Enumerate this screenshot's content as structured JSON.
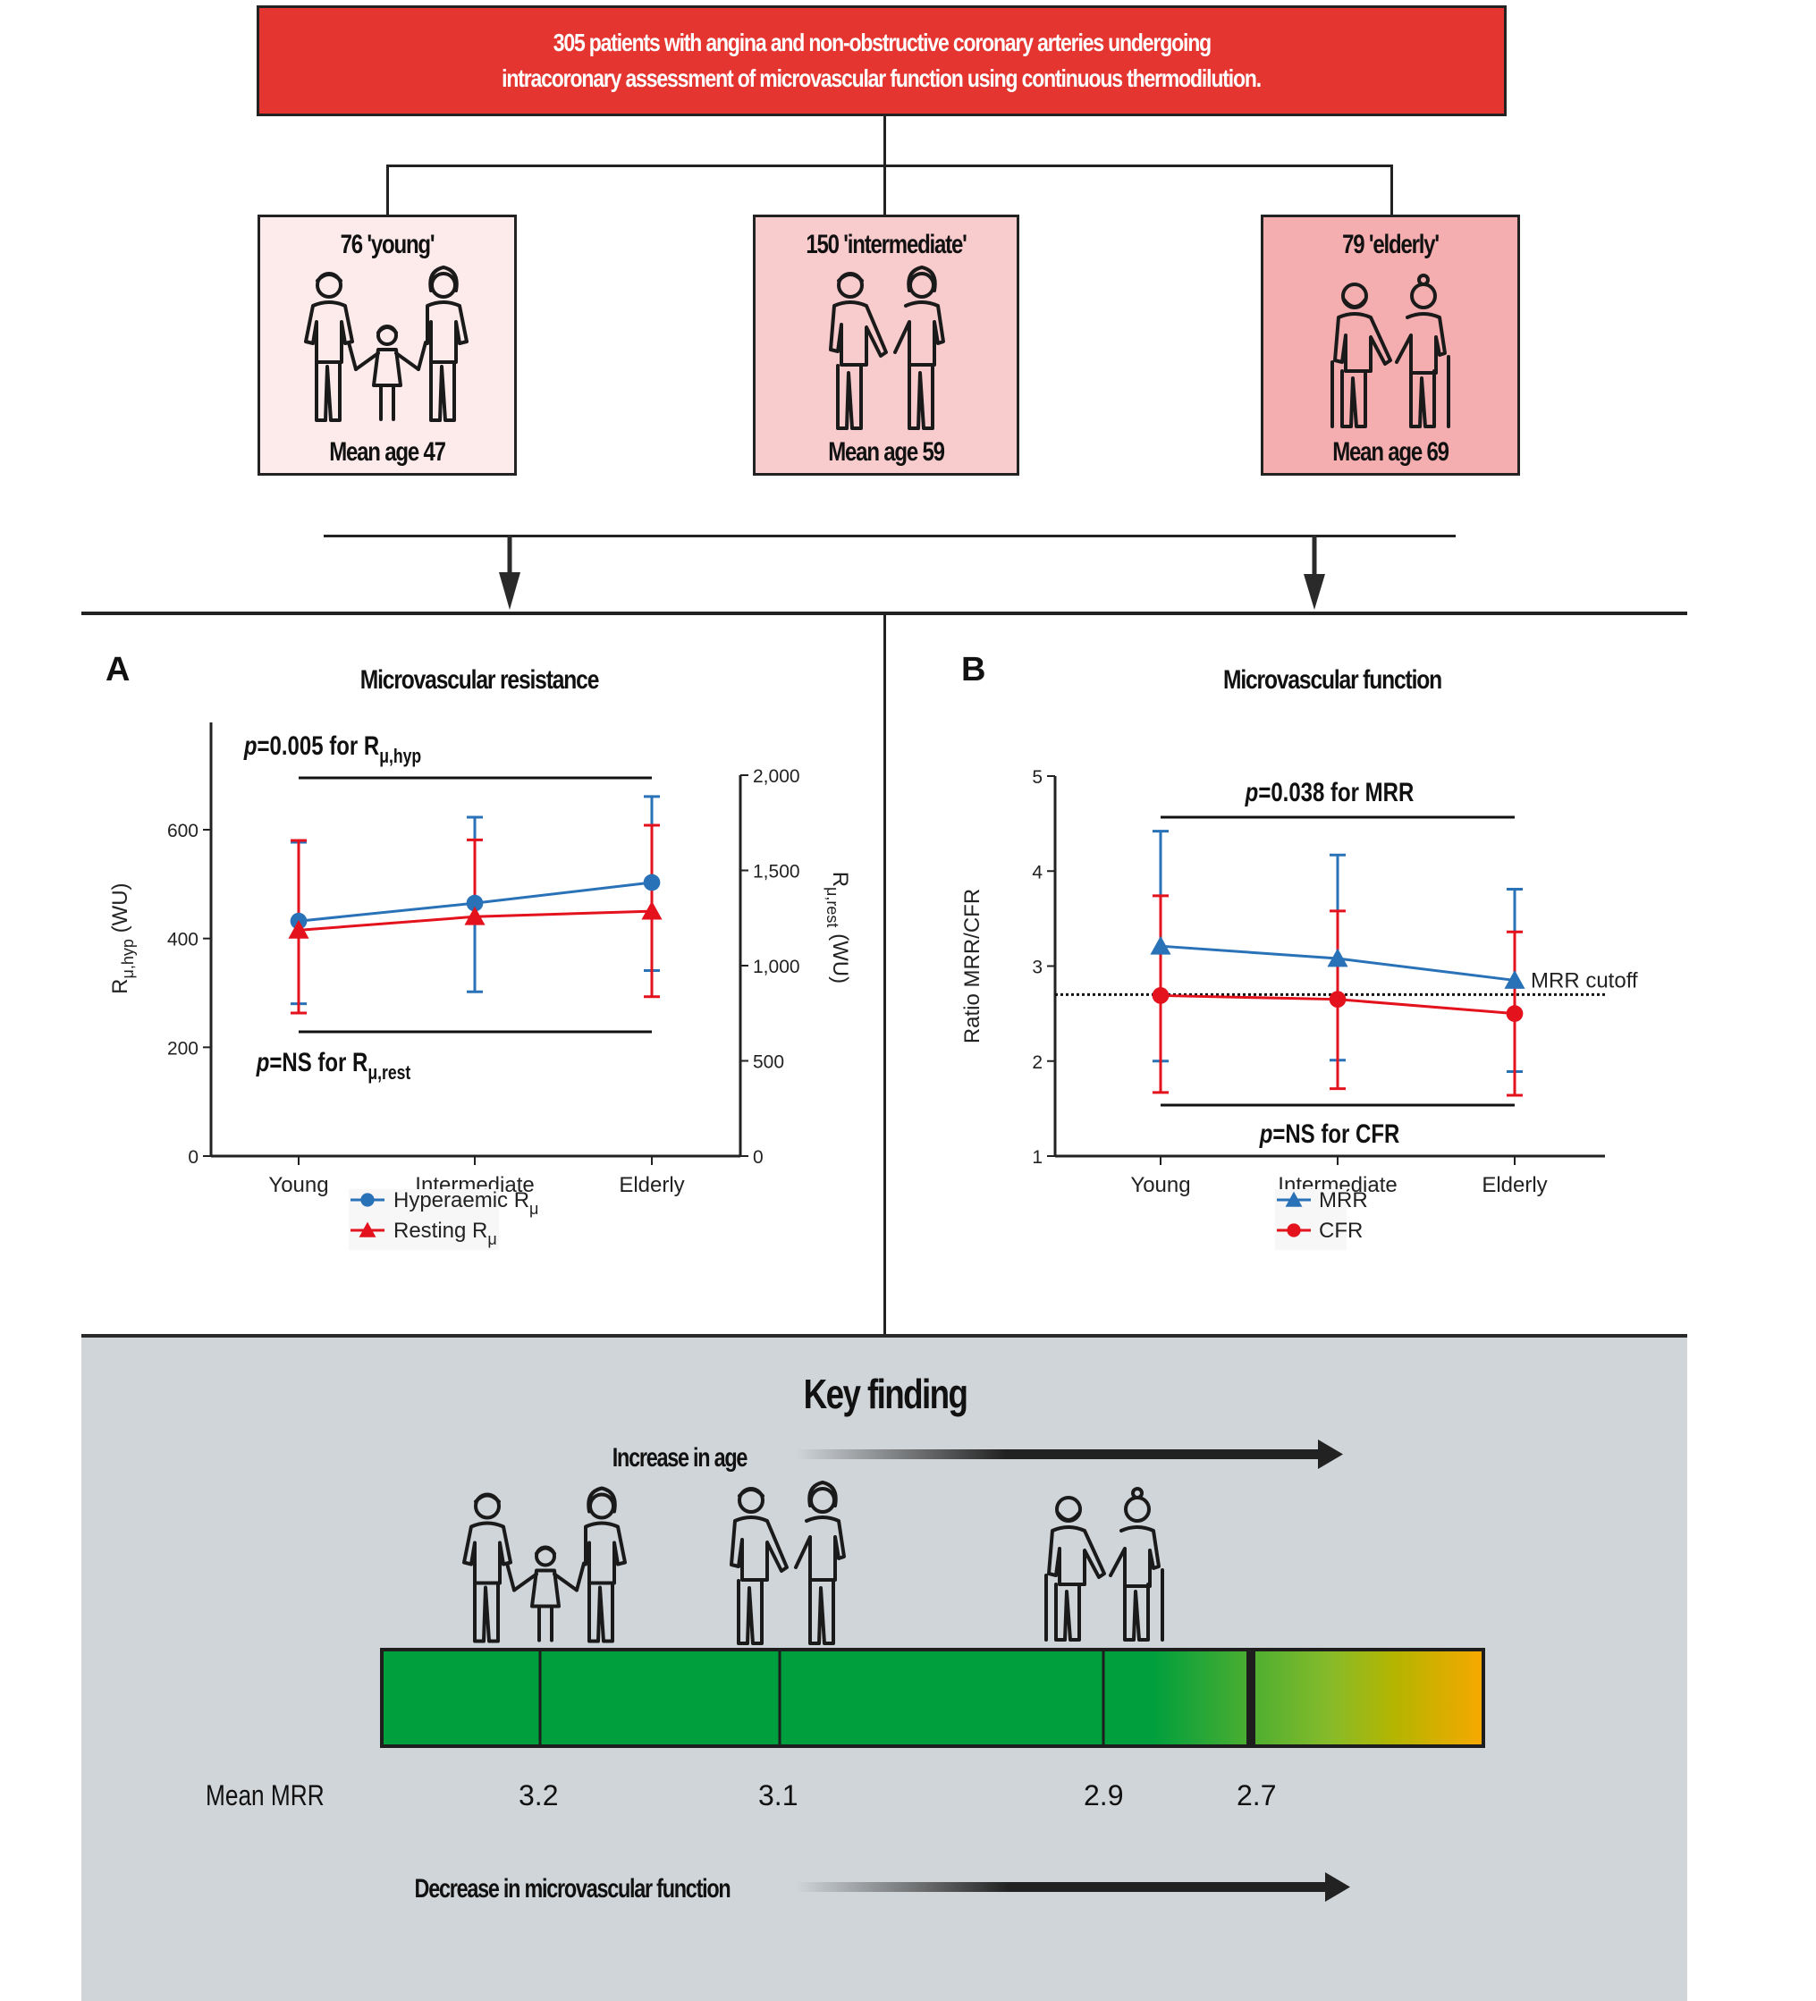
{
  "header": {
    "line1": "305 patients with angina and non-obstructive coronary arteries undergoing",
    "line2": "intracoronary assessment of microvascular function using continuous thermodilution.",
    "box_color": "#e53530"
  },
  "groups": [
    {
      "title": "76 'young'",
      "mean_age": "Mean age 47",
      "icon": "family-with-child-icon",
      "color": "#fdeaea"
    },
    {
      "title": "150 'intermediate'",
      "mean_age": "Mean age 59",
      "icon": "adult-couple-icon",
      "color": "#f8cbcd"
    },
    {
      "title": "79 'elderly'",
      "mean_age": "Mean age 69",
      "icon": "elderly-couple-with-canes-icon",
      "color": "#f4aeb0"
    }
  ],
  "panel_a": {
    "letter": "A",
    "title": "Microvascular resistance",
    "p_top": {
      "p": "p",
      "text": "=0.005 for R",
      "sub": "μ,hyp"
    },
    "p_bottom": {
      "p": "p",
      "text": "=NS for R",
      "sub": "μ,rest"
    },
    "legend": [
      {
        "label": "Hyperaemic R",
        "sub": "μ",
        "color": "#2a72b8",
        "marker": "circle"
      },
      {
        "label": "Resting R",
        "sub": "μ",
        "color": "#e3121d",
        "marker": "triangle"
      }
    ]
  },
  "panel_b": {
    "letter": "B",
    "title": "Microvascular function",
    "p_top": {
      "p": "p",
      "text": "=0.038 for MRR"
    },
    "p_bottom": {
      "p": "p",
      "text": "=NS for CFR"
    },
    "cutoff_label": "MRR cutoff",
    "legend": [
      {
        "label": "MRR",
        "color": "#2a72b8",
        "marker": "triangle"
      },
      {
        "label": "CFR",
        "color": "#e3121d",
        "marker": "circle"
      }
    ]
  },
  "chart_data": [
    {
      "type": "line",
      "title": "Microvascular resistance",
      "categories": [
        "Young",
        "Intermediate",
        "Elderly"
      ],
      "ylabel": "Rμ,hyp (WU)",
      "ylabel_main": "R",
      "ylabel_sub": "μ,hyp",
      "ylabel_unit": "(WU)",
      "y2label_main": "R",
      "y2label_sub": "μ,rest",
      "y2label_unit": "(WU)",
      "ylim": [
        0,
        700
      ],
      "yticks": [
        0,
        200,
        400,
        600
      ],
      "ytick_labels": [
        "0",
        "200",
        "400",
        "600"
      ],
      "y2lim": [
        0,
        2000
      ],
      "y2ticks": [
        0,
        500,
        1000,
        1500,
        2000
      ],
      "y2tick_labels": [
        "0",
        "500",
        "1,000",
        "1,500",
        "2,000"
      ],
      "series": [
        {
          "name": "Hyperaemic Rμ",
          "axis": "left",
          "color": "#2a72b8",
          "marker": "circle",
          "values": [
            432,
            465,
            503
          ],
          "upper": [
            577,
            623,
            661
          ],
          "lower": [
            280,
            302,
            341
          ]
        },
        {
          "name": "Resting Rμ",
          "axis": "right",
          "color": "#e3121d",
          "marker": "triangle",
          "values": [
            1186,
            1257,
            1286
          ],
          "upper": [
            1657,
            1660,
            1737
          ],
          "lower": [
            751,
            null,
            837
          ]
        }
      ],
      "annotations": [
        "p=0.005 for Rμ,hyp",
        "p=NS for Rμ,rest"
      ],
      "grid": false,
      "legend": "bottom"
    },
    {
      "type": "line",
      "title": "Microvascular function",
      "categories": [
        "Young",
        "Intermediate",
        "Elderly"
      ],
      "ylabel": "Ratio MRR/CFR",
      "ylim": [
        1,
        5
      ],
      "yticks": [
        1,
        2,
        3,
        4,
        5
      ],
      "ytick_labels": [
        "1",
        "2",
        "3",
        "4",
        "5"
      ],
      "reference_line": {
        "label": "MRR cutoff",
        "value": 2.7,
        "style": "dotted"
      },
      "series": [
        {
          "name": "MRR",
          "color": "#2a72b8",
          "marker": "triangle",
          "values": [
            3.21,
            3.08,
            2.85
          ],
          "upper": [
            4.42,
            4.17,
            3.81
          ],
          "lower": [
            2.0,
            2.01,
            1.89
          ]
        },
        {
          "name": "CFR",
          "color": "#e3121d",
          "marker": "circle",
          "values": [
            2.69,
            2.65,
            2.5
          ],
          "upper": [
            3.74,
            3.58,
            3.36
          ],
          "lower": [
            1.67,
            1.71,
            1.64
          ]
        }
      ],
      "annotations": [
        "p=0.038 for MRR",
        "p=NS for CFR"
      ],
      "grid": false,
      "legend": "bottom"
    }
  ],
  "key_finding": {
    "title": "Key finding",
    "age_arrow_label": "Increase in age",
    "function_arrow_label": "Decrease in microvascular function",
    "mean_mrr_label": "Mean MRR",
    "mrr_markers": [
      "3.2",
      "3.1",
      "2.9",
      "2.7"
    ],
    "colors": {
      "green": "#009f3d",
      "yellow_green": "#86bb2a",
      "olive": "#b5b500",
      "orange": "#f7a800",
      "background": "#d0d5d9"
    }
  }
}
